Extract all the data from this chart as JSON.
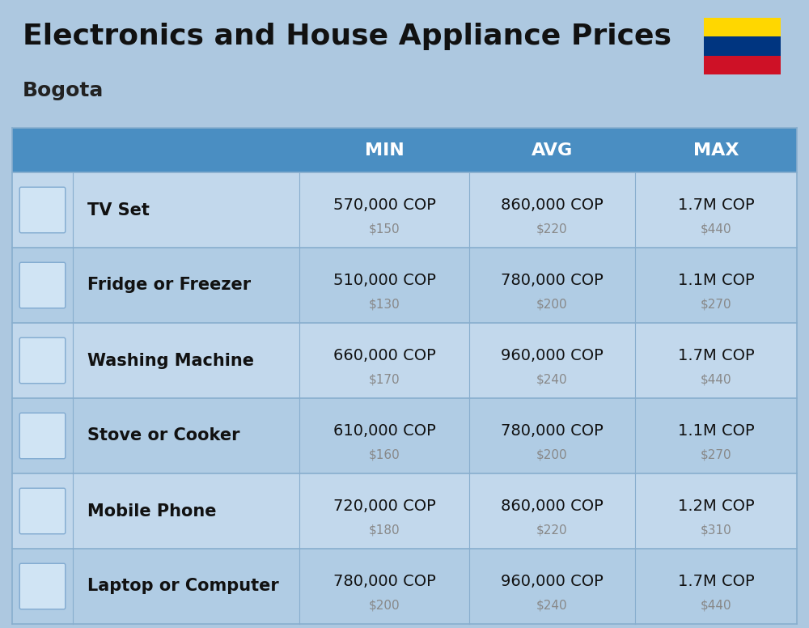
{
  "title": "Electronics and House Appliance Prices",
  "subtitle": "Bogota",
  "background_color": "#adc8e0",
  "header_color": "#4a8ec2",
  "header_text_color": "#ffffff",
  "row_bg_light": "#c2d8ec",
  "row_bg_dark": "#b0cce4",
  "divider_color": "#88aece",
  "headers": [
    "MIN",
    "AVG",
    "MAX"
  ],
  "items": [
    {
      "name": "TV Set",
      "min_cop": "570,000 COP",
      "min_usd": "$150",
      "avg_cop": "860,000 COP",
      "avg_usd": "$220",
      "max_cop": "1.7M COP",
      "max_usd": "$440"
    },
    {
      "name": "Fridge or Freezer",
      "min_cop": "510,000 COP",
      "min_usd": "$130",
      "avg_cop": "780,000 COP",
      "avg_usd": "$200",
      "max_cop": "1.1M COP",
      "max_usd": "$270"
    },
    {
      "name": "Washing Machine",
      "min_cop": "660,000 COP",
      "min_usd": "$170",
      "avg_cop": "960,000 COP",
      "avg_usd": "$240",
      "max_cop": "1.7M COP",
      "max_usd": "$440"
    },
    {
      "name": "Stove or Cooker",
      "min_cop": "610,000 COP",
      "min_usd": "$160",
      "avg_cop": "780,000 COP",
      "avg_usd": "$200",
      "max_cop": "1.1M COP",
      "max_usd": "$270"
    },
    {
      "name": "Mobile Phone",
      "min_cop": "720,000 COP",
      "min_usd": "$180",
      "avg_cop": "860,000 COP",
      "avg_usd": "$220",
      "max_cop": "1.2M COP",
      "max_usd": "$310"
    },
    {
      "name": "Laptop or Computer",
      "min_cop": "780,000 COP",
      "min_usd": "$200",
      "avg_cop": "960,000 COP",
      "avg_usd": "$240",
      "max_cop": "1.7M COP",
      "max_usd": "$440"
    }
  ],
  "colombia_flag_colors": [
    "#FFD700",
    "#003580",
    "#CE1126"
  ],
  "cop_fontsize": 14,
  "usd_fontsize": 11,
  "name_fontsize": 15,
  "header_fontsize": 16,
  "title_fontsize": 26,
  "subtitle_fontsize": 18
}
